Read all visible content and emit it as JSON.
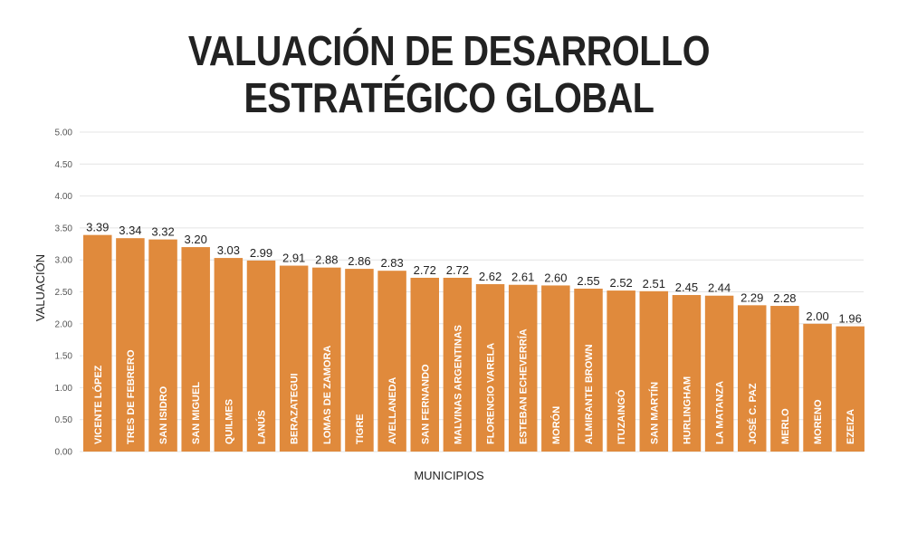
{
  "chart_data": {
    "type": "bar",
    "title_lines": [
      "VALUACIÓN DE DESARROLLO",
      "ESTRATÉGICO GLOBAL"
    ],
    "xlabel": "MUNICIPIOS",
    "ylabel": "VALUACIÓN",
    "ylim": [
      0,
      5
    ],
    "yticks": [
      "0.00",
      "0.50",
      "1.00",
      "1.50",
      "2.00",
      "2.50",
      "3.00",
      "3.50",
      "4.00",
      "4.50",
      "5.00"
    ],
    "grid": true,
    "bar_color": "#E08A3C",
    "categories": [
      "VICENTE LÓPEZ",
      "TRES DE FEBRERO",
      "SAN ISIDRO",
      "SAN MIGUEL",
      "QUILMES",
      "LANÚS",
      "BERAZATEGUI",
      "LOMAS DE ZAMORA",
      "TIGRE",
      "AVELLANEDA",
      "SAN FERNANDO",
      "MALVINAS ARGENTINAS",
      "FLORENCIO VARELA",
      "ESTEBAN ECHEVERRÍA",
      "MORÓN",
      "ALMIRANTE BROWN",
      "ITUZAINGÓ",
      "SAN MARTÍN",
      "HURLINGHAM",
      "LA MATANZA",
      "JOSÉ C. PAZ",
      "MERLO",
      "MORENO",
      "EZEIZA"
    ],
    "values": [
      3.39,
      3.34,
      3.32,
      3.2,
      3.03,
      2.99,
      2.91,
      2.88,
      2.86,
      2.83,
      2.72,
      2.72,
      2.62,
      2.61,
      2.6,
      2.55,
      2.52,
      2.51,
      2.45,
      2.44,
      2.29,
      2.28,
      2.0,
      1.96
    ],
    "value_labels": [
      "3.39",
      "3.34",
      "3.32",
      "3.20",
      "3.03",
      "2.99",
      "2.91",
      "2.88",
      "2.86",
      "2.83",
      "2.72",
      "2.72",
      "2.62",
      "2.61",
      "2.60",
      "2.55",
      "2.52",
      "2.51",
      "2.45",
      "2.44",
      "2.29",
      "2.28",
      "2.00",
      "1.96"
    ]
  }
}
